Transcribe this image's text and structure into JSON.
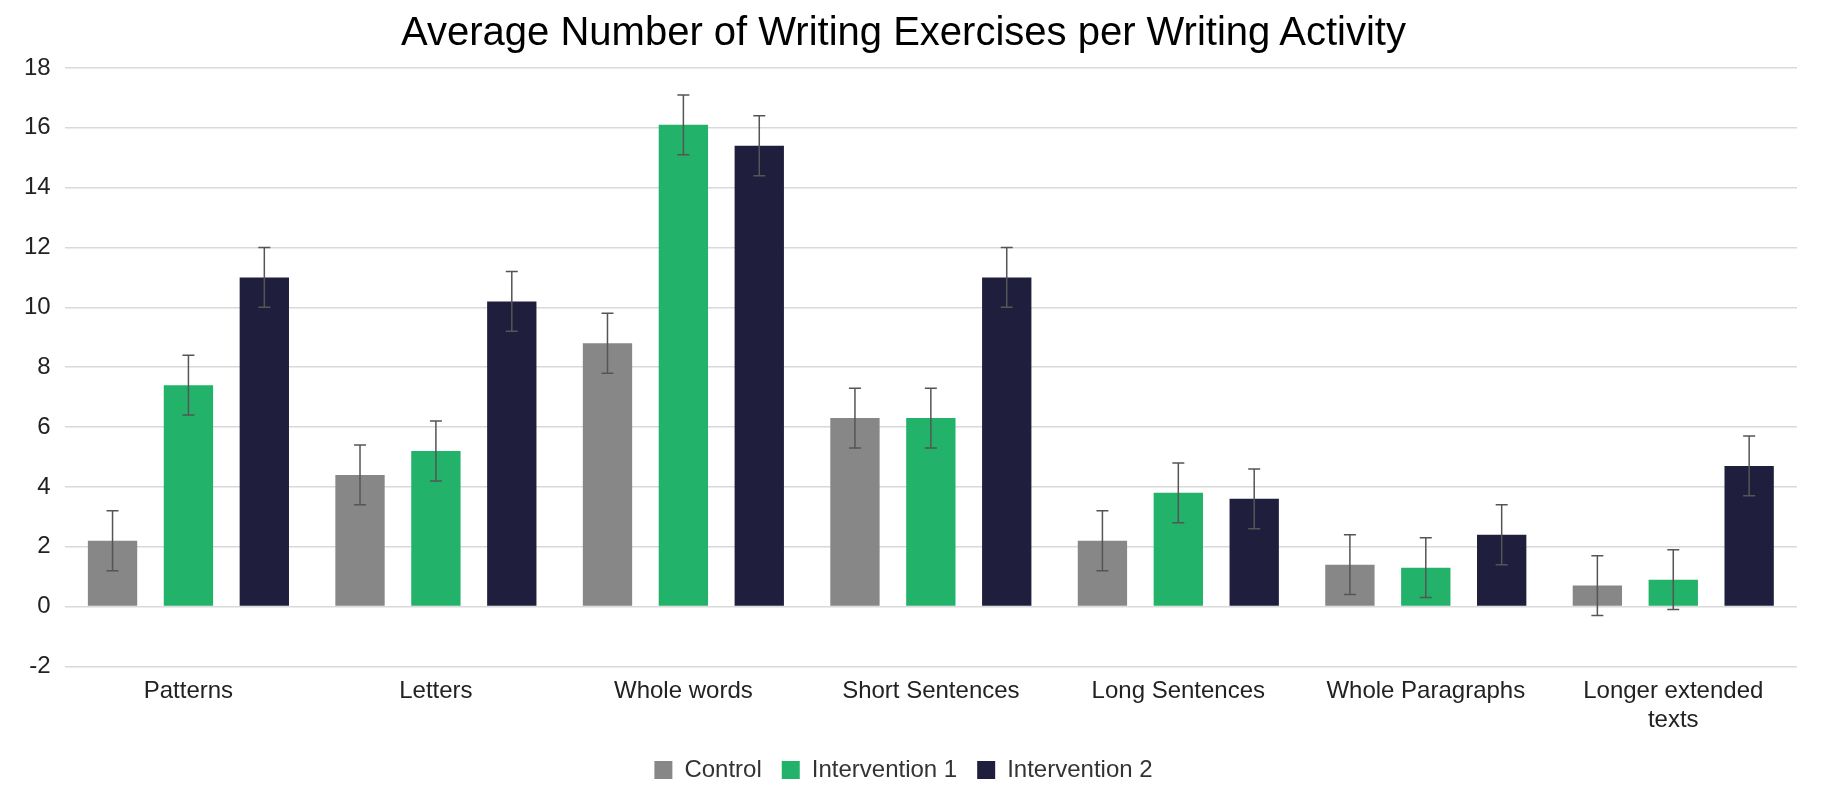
{
  "chart_data": {
    "type": "bar",
    "title": "Average Number of Writing Exercises per Writing Activity",
    "categories": [
      "Patterns",
      "Letters",
      "Whole words",
      "Short Sentences",
      "Long Sentences",
      "Whole Paragraphs",
      "Longer extended texts"
    ],
    "series": [
      {
        "name": "Control",
        "color": "#878787",
        "values": [
          2.2,
          4.4,
          8.8,
          6.3,
          2.2,
          1.4,
          0.7
        ],
        "errors": [
          1,
          1,
          1,
          1,
          1,
          1,
          1
        ]
      },
      {
        "name": "Intervention 1",
        "color": "#22b26a",
        "values": [
          7.4,
          5.2,
          16.1,
          6.3,
          3.8,
          1.3,
          0.9
        ],
        "errors": [
          1,
          1,
          1,
          1,
          1,
          1,
          1
        ]
      },
      {
        "name": "Intervention 2",
        "color": "#1f1f3d",
        "values": [
          11.0,
          10.2,
          15.4,
          11.0,
          3.6,
          2.4,
          4.7
        ],
        "errors": [
          1,
          1,
          1,
          1,
          1,
          1,
          1
        ]
      }
    ],
    "ylim": [
      -2,
      18
    ],
    "yticks": [
      -2,
      0,
      2,
      4,
      6,
      8,
      10,
      12,
      14,
      16,
      18
    ],
    "grid": "y",
    "legend": "bottom"
  }
}
